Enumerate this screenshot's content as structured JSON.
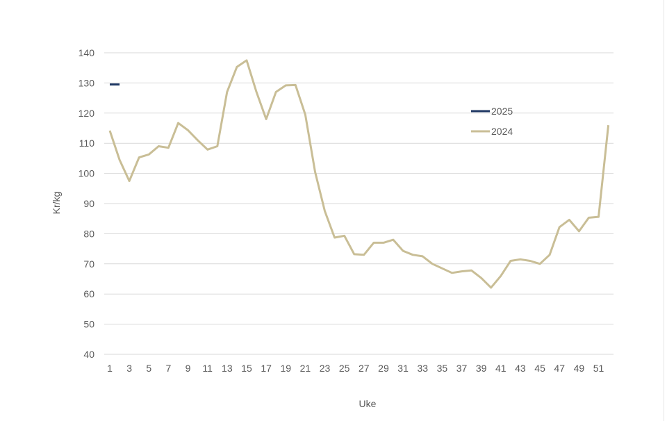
{
  "chart_data": {
    "type": "line",
    "title": "",
    "xlabel": "Uke",
    "ylabel": "Kr/kg",
    "xlim": [
      1,
      52
    ],
    "ylim": [
      40,
      140
    ],
    "x_ticks": [
      1,
      3,
      5,
      7,
      9,
      11,
      13,
      15,
      17,
      19,
      21,
      23,
      25,
      27,
      29,
      31,
      33,
      35,
      37,
      39,
      41,
      43,
      45,
      47,
      49,
      51
    ],
    "y_ticks": [
      40,
      50,
      60,
      70,
      80,
      90,
      100,
      110,
      120,
      130,
      140
    ],
    "grid": "horizontal",
    "legend_position": "right",
    "series": [
      {
        "name": "2025",
        "color": "#1f3864",
        "x": [
          1,
          2
        ],
        "values": [
          129.5,
          129.5
        ]
      },
      {
        "name": "2024",
        "color": "#c9be96",
        "x": [
          1,
          2,
          3,
          4,
          5,
          6,
          7,
          8,
          9,
          10,
          11,
          12,
          13,
          14,
          15,
          16,
          17,
          18,
          19,
          20,
          21,
          22,
          23,
          24,
          25,
          26,
          27,
          28,
          29,
          30,
          31,
          32,
          33,
          34,
          35,
          36,
          37,
          38,
          39,
          40,
          41,
          42,
          43,
          44,
          45,
          46,
          47,
          48,
          49,
          50,
          51,
          52
        ],
        "values": [
          114.2,
          104.5,
          97.5,
          105.3,
          106.3,
          109.0,
          108.5,
          116.7,
          114.3,
          111.0,
          107.9,
          109.0,
          127.0,
          135.3,
          137.5,
          127.0,
          118.0,
          127.0,
          129.2,
          129.3,
          119.5,
          100.5,
          87.5,
          78.7,
          79.3,
          73.2,
          73.0,
          77.0,
          77.0,
          78.0,
          74.3,
          73.0,
          72.5,
          70.0,
          68.5,
          67.0,
          67.5,
          67.8,
          65.3,
          62.1,
          66.0,
          71.0,
          71.5,
          71.0,
          70.0,
          73.0,
          82.2,
          84.6,
          80.8,
          85.3,
          85.6,
          116.0
        ]
      }
    ]
  }
}
